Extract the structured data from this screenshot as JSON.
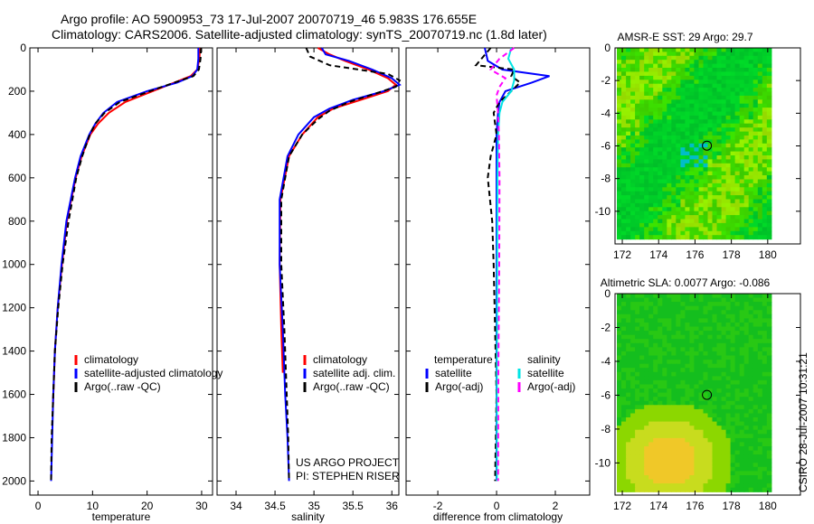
{
  "title_line1": "Argo profile: AO 5900953_73 17-Jul-2007 20070719_46 5.983S 176.655E",
  "title_line2": "Climatology: CARS2006. Satellite-adjusted climatology: synTS_20070719.nc (1.8d later)",
  "side_label": "CSIRO 28-Jul-2007 10:31:21",
  "credit_line1": "US ARGO PROJECT",
  "credit_line2": "PI: STEPHEN RISER",
  "colors": {
    "clim": "#ff0000",
    "sat": "#0000ff",
    "argo": "#000000",
    "sal_sat": "#00e5e5",
    "sal_argo": "#ff00ff"
  },
  "chart_data": [
    {
      "type": "line",
      "name": "temperature",
      "xlabel": "temperature",
      "xlim": [
        -1.5,
        32
      ],
      "ylim": [
        0,
        2065
      ],
      "xticks": [
        0,
        10,
        20,
        30
      ],
      "yticks": [
        0,
        200,
        400,
        600,
        800,
        1000,
        1200,
        1400,
        1600,
        1800,
        2000
      ],
      "reversed_y": true,
      "legend": [
        "climatology",
        "satellite-adjusted climatology",
        "Argo(..raw -QC)"
      ],
      "series": [
        {
          "name": "climatology",
          "color": "#ff0000",
          "dash": false,
          "depth": [
            0,
            50,
            100,
            130,
            160,
            200,
            250,
            300,
            350,
            400,
            500,
            600,
            800,
            1000,
            1200,
            1400,
            1680
          ],
          "values": [
            29.7,
            29.6,
            29.2,
            28,
            25,
            21,
            16,
            13,
            11,
            9.6,
            8,
            6.9,
            5.3,
            4.4,
            3.6,
            3.1,
            2.7
          ]
        },
        {
          "name": "satellite-adjusted climatology",
          "color": "#0000ff",
          "dash": false,
          "depth": [
            0,
            50,
            100,
            130,
            160,
            200,
            250,
            300,
            350,
            400,
            500,
            600,
            800,
            1000,
            1200,
            1400,
            1600,
            1800,
            2000
          ],
          "values": [
            29.4,
            29.4,
            29.2,
            28.3,
            25.5,
            20,
            14.5,
            12,
            10.5,
            9.4,
            7.8,
            6.8,
            5.2,
            4.3,
            3.6,
            3.1,
            2.8,
            2.6,
            2.4
          ]
        },
        {
          "name": "Argo(..raw -QC)",
          "color": "#000000",
          "dash": true,
          "depth": [
            0,
            50,
            100,
            130,
            160,
            200,
            250,
            300,
            350,
            400,
            500,
            600,
            800,
            1000,
            1200,
            1400,
            1600,
            1800,
            2000
          ],
          "values": [
            29.9,
            29.8,
            29.5,
            28.5,
            25,
            20.5,
            15,
            12.2,
            10.5,
            9.5,
            8.1,
            7,
            5.6,
            4.5,
            3.7,
            3.1,
            2.8,
            2.5,
            2.4
          ]
        }
      ]
    },
    {
      "type": "line",
      "name": "salinity",
      "xlabel": "salinity",
      "xlim": [
        33.756,
        36.09
      ],
      "ylim": [
        0,
        2065
      ],
      "xticks": [
        34,
        34.5,
        35,
        35.5,
        36
      ],
      "yticks": [
        0,
        200,
        400,
        600,
        800,
        1000,
        1200,
        1400,
        1600,
        1800,
        2000
      ],
      "reversed_y": true,
      "legend": [
        "climatology",
        "satellite adj. clim.",
        "Argo(..raw -QC)"
      ],
      "series": [
        {
          "name": "climatology",
          "color": "#ff0000",
          "dash": false,
          "depth": [
            0,
            30,
            60,
            100,
            140,
            170,
            200,
            240,
            280,
            320,
            400,
            500,
            700,
            1000,
            1300,
            1500
          ],
          "values": [
            35.05,
            35.2,
            35.4,
            35.7,
            35.95,
            36.05,
            35.95,
            35.6,
            35.25,
            35.05,
            34.85,
            34.68,
            34.57,
            34.56,
            34.58,
            34.6
          ]
        },
        {
          "name": "satellite adj. clim.",
          "color": "#0000ff",
          "dash": false,
          "depth": [
            0,
            30,
            60,
            100,
            140,
            170,
            200,
            240,
            280,
            320,
            400,
            500,
            700,
            1000,
            1300,
            1600,
            1800,
            2000
          ],
          "values": [
            35.1,
            35.15,
            35.45,
            35.75,
            36.0,
            36.1,
            35.9,
            35.5,
            35.2,
            35.0,
            34.8,
            34.66,
            34.56,
            34.56,
            34.6,
            34.63,
            34.66,
            34.68
          ]
        },
        {
          "name": "Argo(..raw -QC)",
          "color": "#000000",
          "dash": true,
          "depth": [
            0,
            40,
            80,
            120,
            150,
            180,
            210,
            250,
            290,
            330,
            400,
            500,
            700,
            1000,
            1300,
            1600,
            1800,
            2000
          ],
          "values": [
            34.9,
            34.95,
            35.2,
            35.95,
            36.1,
            36.05,
            35.8,
            35.45,
            35.2,
            35.05,
            34.85,
            34.68,
            34.58,
            34.58,
            34.62,
            34.65,
            34.67,
            34.68
          ]
        }
      ]
    },
    {
      "type": "line",
      "name": "difference",
      "xlabel": "difference from climatology",
      "xlim": [
        -3.08,
        3.17
      ],
      "ylim": [
        0,
        2065
      ],
      "xticks": [
        -2,
        0,
        2
      ],
      "yticks": [
        0,
        200,
        400,
        600,
        800,
        1000,
        1200,
        1400,
        1600,
        1800,
        2000
      ],
      "reversed_y": true,
      "legend_headers": [
        "temperature",
        "salinity"
      ],
      "legend": [
        "satellite",
        "Argo(-adj)",
        "satellite",
        "Argo(-adj)"
      ],
      "series": [
        {
          "name": "temperature satellite",
          "color": "#0000ff",
          "dash": false,
          "depth": [
            0,
            60,
            100,
            130,
            160,
            200,
            250,
            300,
            400,
            600,
            800,
            1000,
            1300,
            1600,
            2000
          ],
          "values": [
            -0.4,
            -0.3,
            0.2,
            1.8,
            1.2,
            0.3,
            0.1,
            0.05,
            0,
            0,
            0,
            0,
            0,
            0,
            0
          ]
        },
        {
          "name": "temperature Argo(-adj)",
          "color": "#000000",
          "dash": true,
          "depth": [
            0,
            80,
            100,
            130,
            160,
            200,
            250,
            300,
            400,
            500,
            600,
            800,
            1000,
            1300,
            1600,
            2000
          ],
          "values": [
            -0.2,
            -0.7,
            0.6,
            0.5,
            0.8,
            0.5,
            0.1,
            -0.1,
            0,
            -0.2,
            -0.3,
            -0.15,
            -0.1,
            -0.05,
            0,
            -0.05
          ]
        },
        {
          "name": "salinity satellite",
          "color": "#00e5e5",
          "dash": false,
          "depth": [
            0,
            50,
            100,
            150,
            200,
            250,
            300,
            400,
            600,
            1000,
            1500,
            2000
          ],
          "values": [
            0.5,
            0.4,
            0.6,
            0.6,
            0.5,
            0.2,
            0.1,
            0.05,
            0.03,
            0.02,
            0.01,
            0.01
          ]
        },
        {
          "name": "salinity Argo(-adj)",
          "color": "#ff00ff",
          "dash": true,
          "depth": [
            0,
            50,
            100,
            140,
            180,
            220,
            300,
            400,
            600,
            1000,
            1500,
            2000
          ],
          "values": [
            0.6,
            0.1,
            -0.2,
            0.3,
            0.1,
            0.0,
            0.05,
            0.08,
            0.1,
            0.09,
            0.06,
            0.05
          ]
        }
      ]
    },
    {
      "type": "heatmap",
      "name": "sst-map",
      "title": "AMSR-E SST: 29 Argo: 29.7",
      "xlim": [
        171.6,
        181.8
      ],
      "ylim": [
        -12,
        0
      ],
      "xticks": [
        172,
        174,
        176,
        178,
        180
      ],
      "yticks": [
        0,
        -2,
        -4,
        -6,
        -8,
        -10
      ],
      "argo_position": {
        "lon": 176.655,
        "lat": -5.983
      }
    },
    {
      "type": "heatmap",
      "name": "sla-map",
      "title": "Altimetric SLA: 0.0077 Argo: -0.086",
      "xlim": [
        171.6,
        181.8
      ],
      "ylim": [
        -11.9,
        0
      ],
      "xticks": [
        172,
        174,
        176,
        178,
        180
      ],
      "yticks": [
        0,
        -2,
        -4,
        -6,
        -8,
        -10
      ],
      "argo_position": {
        "lon": 176.655,
        "lat": -5.983
      }
    }
  ]
}
